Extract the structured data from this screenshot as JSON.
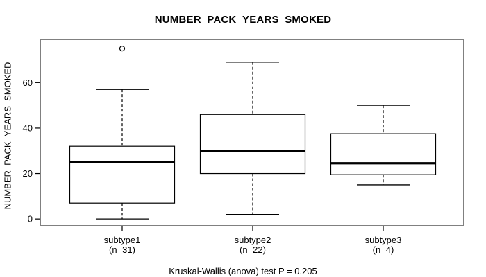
{
  "chart_data": {
    "type": "boxplot",
    "title": "NUMBER_PACK_YEARS_SMOKED",
    "ylabel": "NUMBER_PACK_YEARS_SMOKED",
    "xlabel": "",
    "footer": "Kruskal-Wallis (anova) test P = 0.205",
    "yticks": [
      0,
      20,
      40,
      60
    ],
    "ylim": [
      -3,
      79
    ],
    "grid": false,
    "categories": [
      "subtype1",
      "subtype2",
      "subtype3"
    ],
    "category_sublabels": [
      "(n=31)",
      "(n=22)",
      "(n=4)"
    ],
    "series": [
      {
        "name": "subtype1",
        "n": 31,
        "whisker_low": 0,
        "q1": 7,
        "median": 25,
        "q3": 32,
        "whisker_high": 57,
        "outliers": [
          75
        ]
      },
      {
        "name": "subtype2",
        "n": 22,
        "whisker_low": 2,
        "q1": 20,
        "median": 30,
        "q3": 46,
        "whisker_high": 69,
        "outliers": []
      },
      {
        "name": "subtype3",
        "n": 4,
        "whisker_low": 15,
        "q1": 19.5,
        "median": 24.5,
        "q3": 37.5,
        "whisker_high": 50,
        "outliers": []
      }
    ],
    "colors": {
      "background": "#ffffff",
      "frame": "#808080",
      "box_stroke": "#000000",
      "box_fill": "#ffffff",
      "median": "#000000",
      "whisker": "#000000",
      "text": "#000000"
    }
  }
}
